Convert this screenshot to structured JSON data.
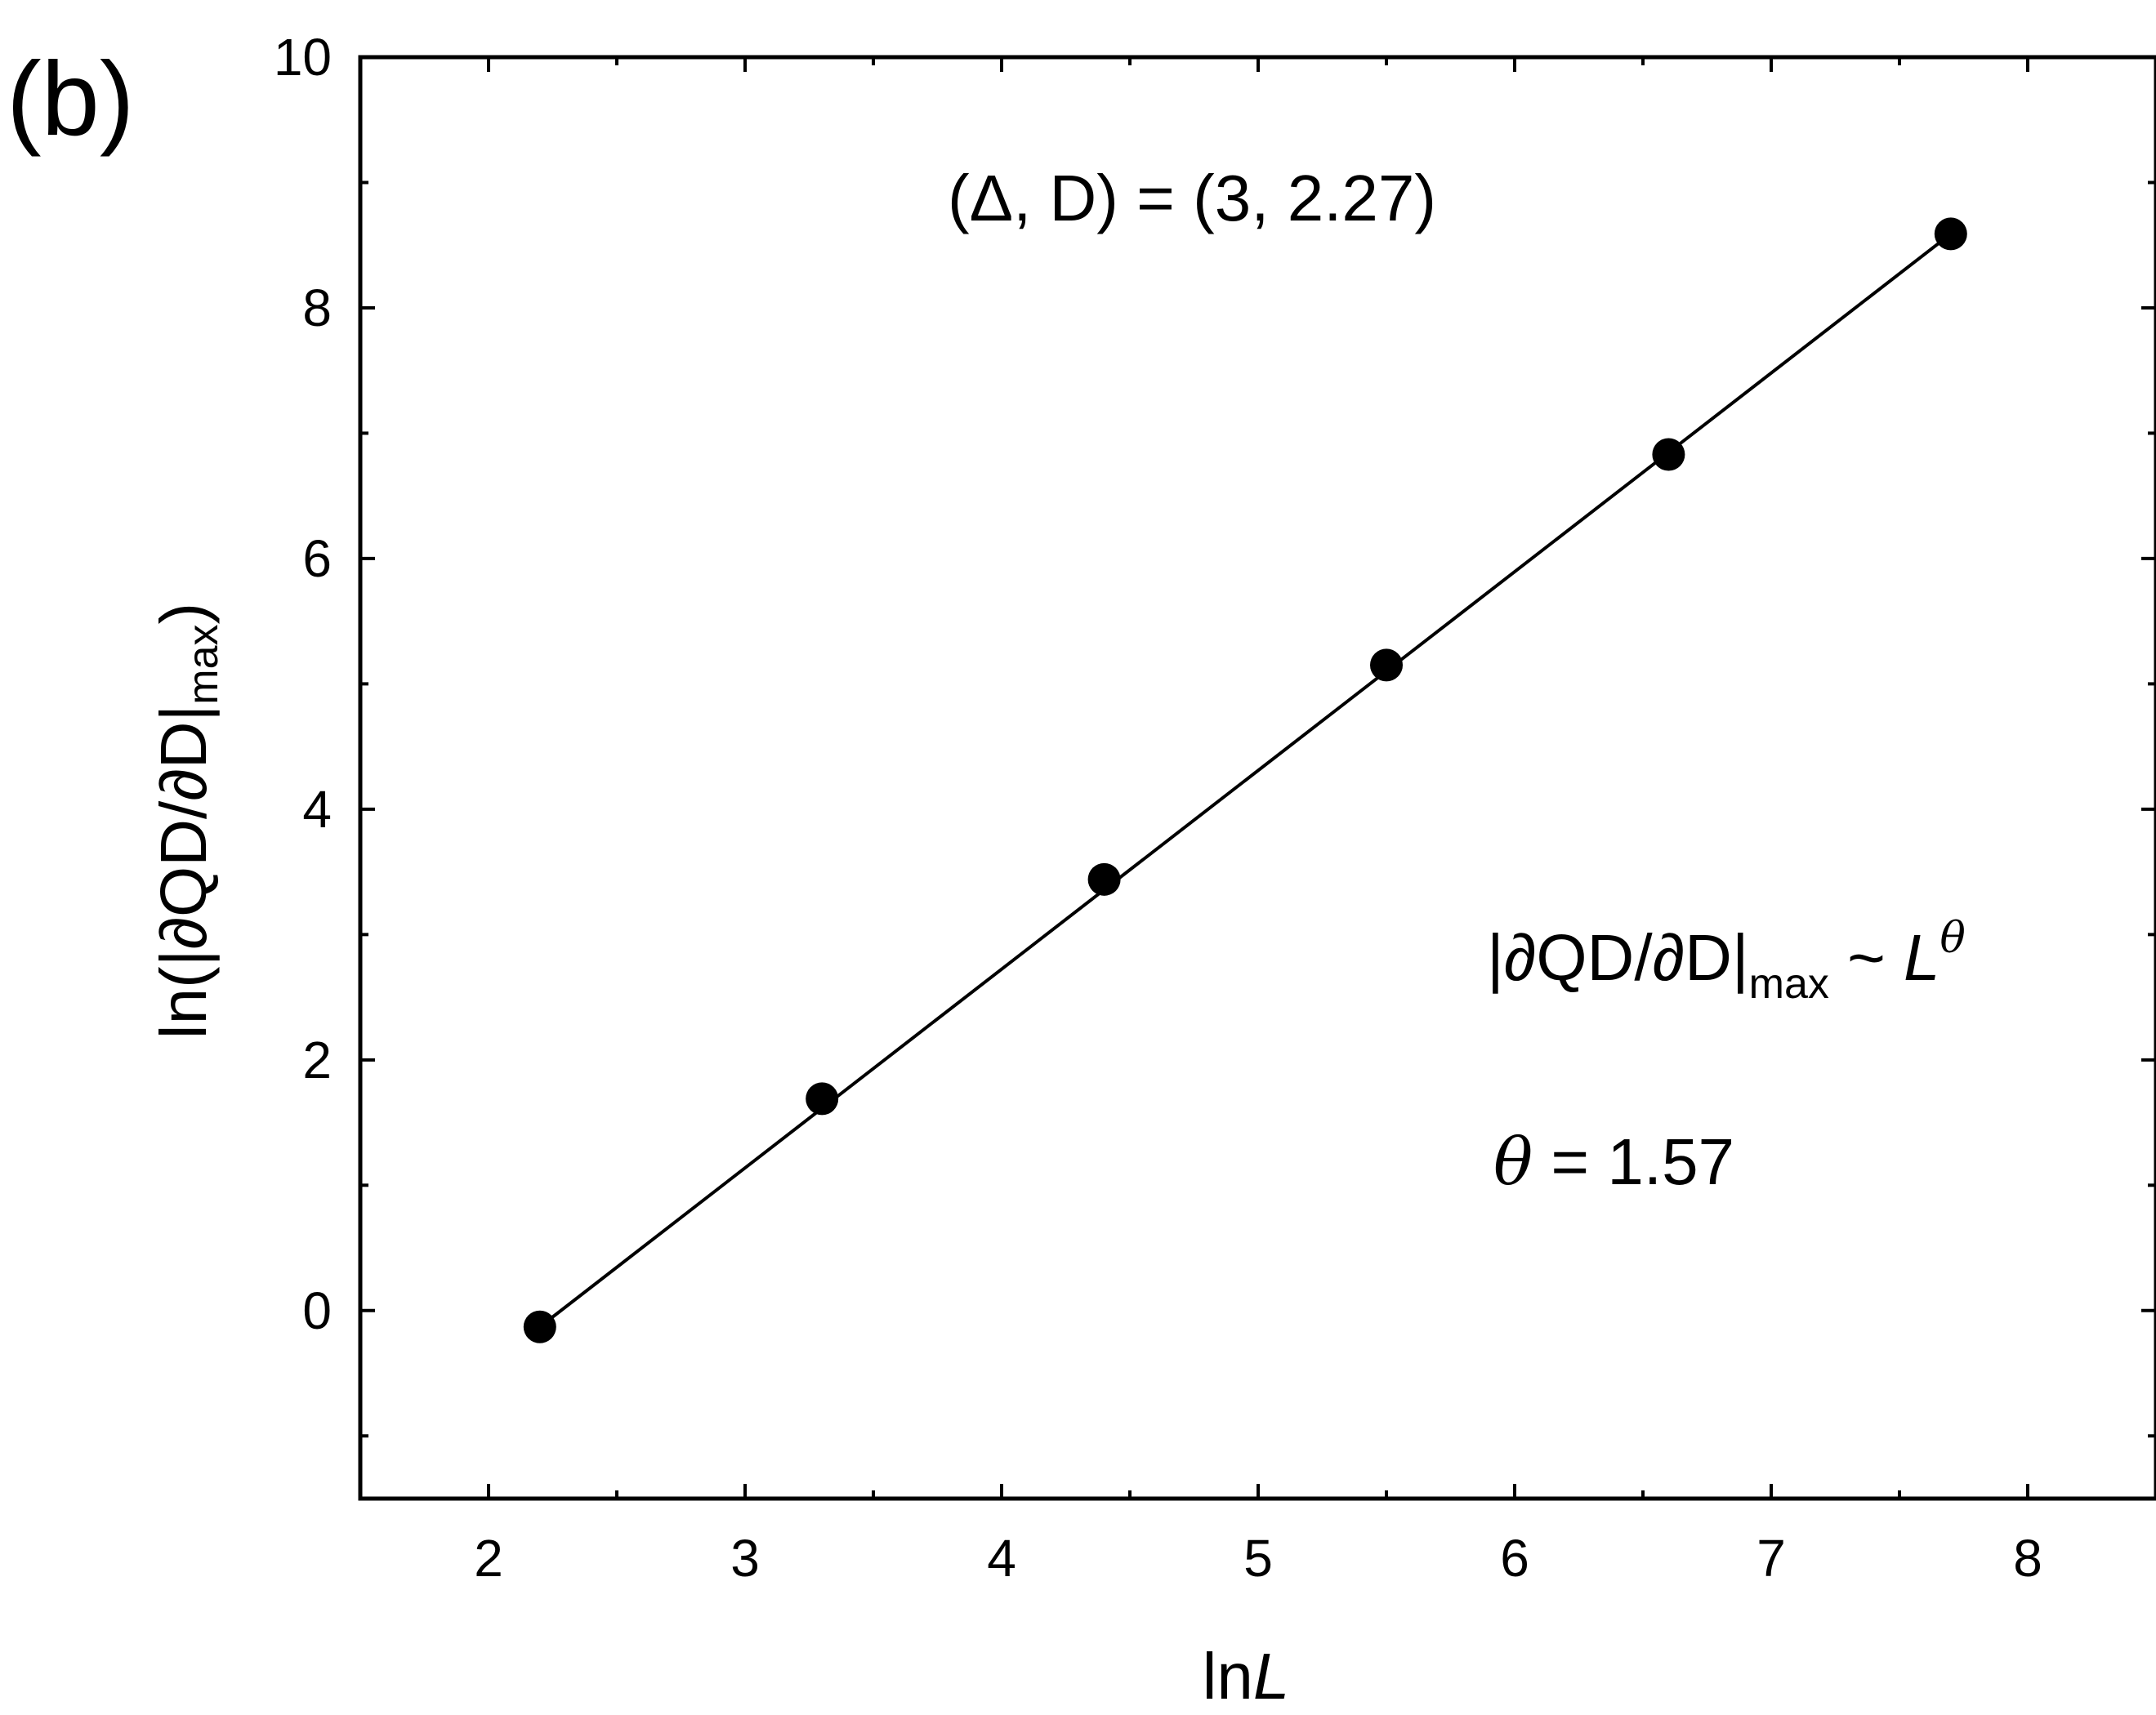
{
  "panel_label": "(b)",
  "chart_data": {
    "type": "scatter",
    "xlim": [
      1.5,
      8.5
    ],
    "ylim": [
      -1.5,
      10
    ],
    "x_ticks": [
      2,
      3,
      4,
      5,
      6,
      7,
      8
    ],
    "x_tick_labels": [
      "2",
      "3",
      "4",
      "5",
      "6",
      "7",
      "8"
    ],
    "y_ticks": [
      0,
      2,
      4,
      6,
      8,
      10
    ],
    "y_tick_labels": [
      "0",
      "2",
      "4",
      "6",
      "8",
      "10"
    ],
    "xlabel": {
      "prefix": "ln",
      "italic": "L"
    },
    "ylabel": {
      "main": "ln(|∂QD/∂D|",
      "sub": "max",
      "close": ")"
    },
    "points": [
      {
        "x": 2.2,
        "y": -0.13
      },
      {
        "x": 3.3,
        "y": 1.69
      },
      {
        "x": 4.4,
        "y": 3.44
      },
      {
        "x": 5.5,
        "y": 5.15
      },
      {
        "x": 6.6,
        "y": 6.83
      },
      {
        "x": 7.7,
        "y": 8.59
      }
    ],
    "fit_line": {
      "x": [
        2.2,
        7.7
      ],
      "y": [
        -0.13,
        8.59
      ]
    },
    "grid": false,
    "annotations": {
      "params": "(Δ, D) = (3, 2.27)",
      "scaling": {
        "left": "|∂QD/∂D|",
        "sub": "max",
        "mid": " ~ ",
        "base": "L",
        "sup": "θ"
      },
      "theta": {
        "symbol": "θ",
        "value_text": " = 1.57"
      }
    },
    "colors": {
      "marker": "#000000",
      "line": "#000000",
      "axes": "#000000"
    }
  }
}
